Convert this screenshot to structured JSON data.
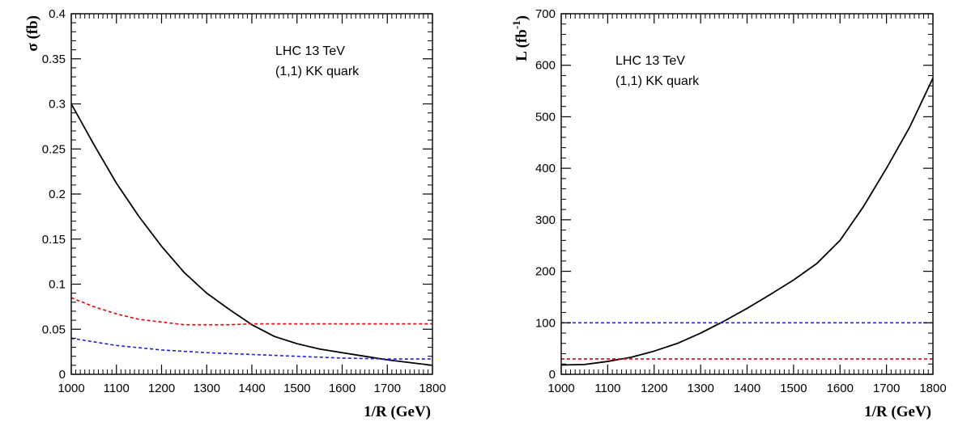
{
  "chart_data": [
    {
      "type": "line",
      "xlabel": "1/R (GeV)",
      "ylabel": "σ (fb)",
      "xlim": [
        1000,
        1800
      ],
      "ylim": [
        0,
        0.4
      ],
      "xticks": [
        "1000",
        "1100",
        "1200",
        "1300",
        "1400",
        "1500",
        "1600",
        "1700",
        "1800"
      ],
      "yticks": [
        "0",
        "0.05",
        "0.1",
        "0.15",
        "0.2",
        "0.25",
        "0.3",
        "0.35",
        "0.4"
      ],
      "annotations": [
        "LHC 13 TeV",
        "(1,1) KK quark"
      ],
      "grid": false,
      "series": [
        {
          "color": "#000000",
          "dash": "solid",
          "x": [
            1000,
            1050,
            1100,
            1150,
            1200,
            1250,
            1300,
            1350,
            1400,
            1450,
            1500,
            1550,
            1600,
            1650,
            1700,
            1750,
            1800
          ],
          "y": [
            0.3,
            0.255,
            0.212,
            0.175,
            0.142,
            0.113,
            0.09,
            0.072,
            0.055,
            0.042,
            0.034,
            0.028,
            0.024,
            0.02,
            0.016,
            0.013,
            0.01
          ]
        },
        {
          "color": "#e8000b",
          "dash": "dashed",
          "x": [
            1000,
            1050,
            1100,
            1150,
            1200,
            1250,
            1300,
            1350,
            1400,
            1500,
            1600,
            1700,
            1800
          ],
          "y": [
            0.085,
            0.075,
            0.067,
            0.061,
            0.058,
            0.055,
            0.055,
            0.055,
            0.056,
            0.056,
            0.056,
            0.056,
            0.056
          ]
        },
        {
          "color": "#1f1fe0",
          "dash": "dashed",
          "x": [
            1000,
            1100,
            1200,
            1300,
            1400,
            1500,
            1600,
            1700,
            1800
          ],
          "y": [
            0.04,
            0.032,
            0.027,
            0.024,
            0.022,
            0.02,
            0.018,
            0.017,
            0.017
          ]
        }
      ]
    },
    {
      "type": "line",
      "xlabel": "1/R (GeV)",
      "ylabel": "L (fb",
      "ylabel_sup": "-1",
      "ylabel_close": ")",
      "xlim": [
        1000,
        1800
      ],
      "ylim": [
        0,
        700
      ],
      "xticks": [
        "1000",
        "1100",
        "1200",
        "1300",
        "1400",
        "1500",
        "1600",
        "1700",
        "1800"
      ],
      "yticks": [
        "0",
        "100",
        "200",
        "300",
        "400",
        "500",
        "600",
        "700"
      ],
      "annotations": [
        "LHC 13 TeV",
        "(1,1) KK quark"
      ],
      "grid": false,
      "series": [
        {
          "color": "#000000",
          "dash": "solid",
          "x": [
            1000,
            1050,
            1100,
            1150,
            1200,
            1250,
            1300,
            1350,
            1400,
            1450,
            1500,
            1550,
            1600,
            1650,
            1700,
            1750,
            1800
          ],
          "y": [
            18,
            19,
            25,
            33,
            45,
            60,
            80,
            103,
            128,
            155,
            183,
            215,
            260,
            325,
            400,
            480,
            575
          ]
        },
        {
          "color": "#e8000b",
          "dash": "dashed",
          "x": [
            1000,
            1800
          ],
          "y": [
            30,
            30
          ]
        },
        {
          "color": "#1f1fe0",
          "dash": "dashed",
          "x": [
            1000,
            1800
          ],
          "y": [
            100,
            100
          ]
        }
      ]
    }
  ]
}
